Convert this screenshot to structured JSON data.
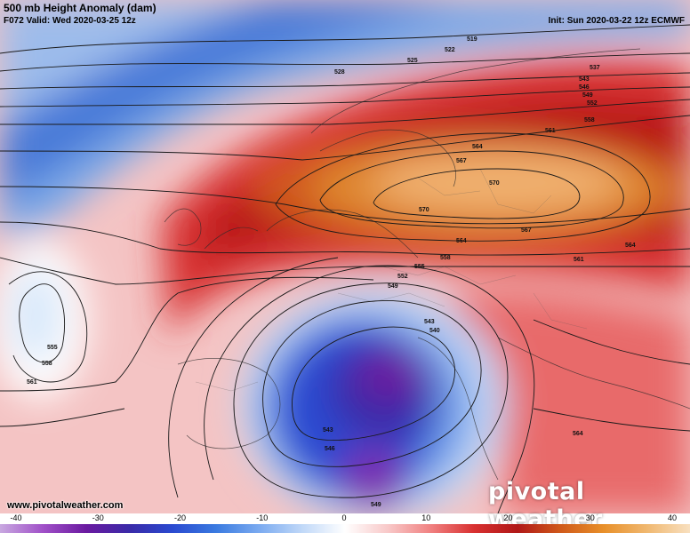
{
  "header": {
    "title": "500 mb Height Anomaly (dam)",
    "subtitle": "F072 Valid: Wed 2020-03-25 12z",
    "init": "Init: Sun 2020-03-22 12z ECMWF"
  },
  "footer": {
    "site": "www.pivotalweather.com",
    "brand": "pivotal weather"
  },
  "colorbar": {
    "labels": [
      "-40",
      "-30",
      "-20",
      "-10",
      "0",
      "10",
      "20",
      "30",
      "40"
    ],
    "stops": [
      "#c8a8e0",
      "#a050c8",
      "#6a1aa0",
      "#3a2aa8",
      "#2a4ad0",
      "#3a7ae0",
      "#7aaaf0",
      "#c0d8f8",
      "#ffffff",
      "#f8c8c8",
      "#f08080",
      "#d83030",
      "#b01818",
      "#d05a1a",
      "#e8902a",
      "#f0b870",
      "#f8e0c0"
    ]
  },
  "contours": {
    "labels": [
      "519",
      "525",
      "522",
      "528",
      "537",
      "543",
      "546",
      "549",
      "552",
      "558",
      "561",
      "564",
      "567",
      "570",
      "570",
      "567",
      "564",
      "564",
      "561",
      "558",
      "555",
      "552",
      "549",
      "543",
      "540",
      "555",
      "558",
      "561",
      "543",
      "546",
      "549",
      "564"
    ]
  }
}
